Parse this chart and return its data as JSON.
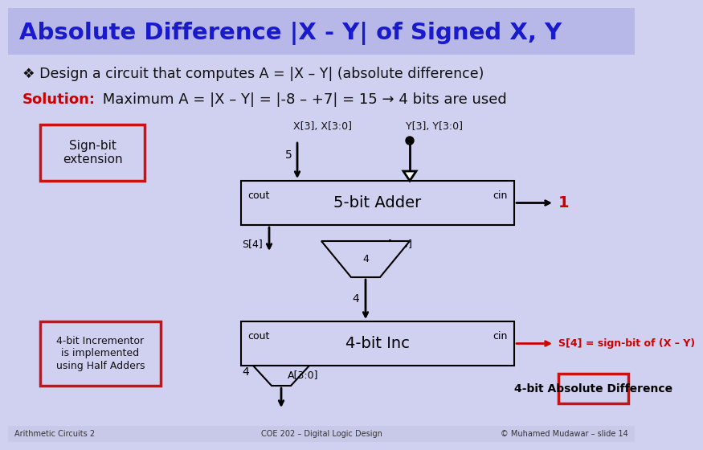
{
  "title": "Absolute Difference |X - Y| of Signed X, Y",
  "title_color": "#1a1acd",
  "title_bg": "#b8b8e8",
  "body_bg": "#d0d0f0",
  "footer_bg": "#c8c8e8",
  "line1": "❖ Design a circuit that computes A = |X – Y| (absolute difference)",
  "line2_bold": "Solution:",
  "line2_rest": " Maximum A = |X – Y| = |-8 – +7| = 15 → 4 bits are used",
  "line2_bold_color": "#cc0000",
  "line2_rest_color": "#111111",
  "footer_left": "Arithmetic Circuits 2",
  "footer_center": "COE 202 – Digital Logic Design",
  "footer_right": "© Muhamed Mudawar – slide 14",
  "box_red_color": "#cc1111",
  "adder_label": "5-bit Adder",
  "inc_label": "4-bit Inc",
  "abs_diff_label": "4-bit Absolute Difference",
  "sign_bit_label": "S[4] = sign-bit of (X – Y)",
  "sign_bit_color": "#cc0000"
}
